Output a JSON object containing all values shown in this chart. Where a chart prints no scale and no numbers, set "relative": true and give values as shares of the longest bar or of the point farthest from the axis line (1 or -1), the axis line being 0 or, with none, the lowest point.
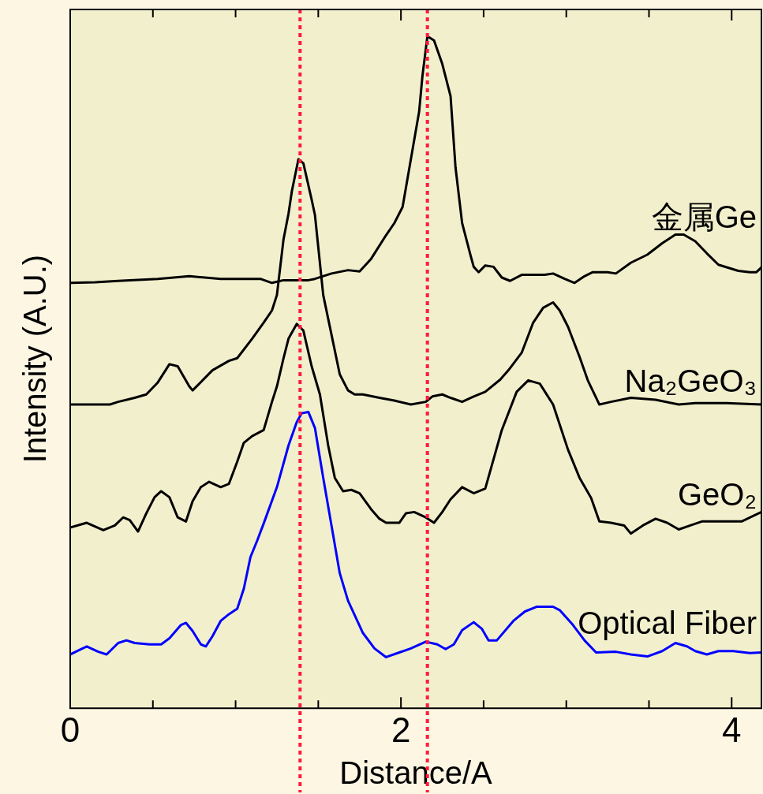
{
  "chart_data": {
    "type": "line",
    "xlabel": "Distance/A",
    "ylabel": "Intensity (A.U.)",
    "relative": true,
    "xlim": [
      0,
      4.18
    ],
    "xticks": [
      0,
      {
        "value": 0.5,
        "label": null
      },
      {
        "value": 1,
        "label": null
      },
      {
        "value": 1.5,
        "label": null
      },
      2,
      {
        "value": 2.5,
        "label": null
      },
      {
        "value": 3,
        "label": null
      },
      {
        "value": 3.5,
        "label": null
      },
      4
    ],
    "grid": false,
    "legend": false,
    "marker": "none",
    "line_style": "solid",
    "ref_lines": [
      {
        "axis": "x",
        "value": 1.39,
        "color": "#ff1a3c",
        "line_style": "dotted"
      },
      {
        "axis": "x",
        "value": 2.16,
        "color": "#ff1a3c",
        "line_style": "dotted"
      }
    ],
    "series": [
      {
        "name": "金属Ge",
        "color": "#000000",
        "x": [
          0,
          0.15,
          0.29,
          0.53,
          0.72,
          0.91,
          1.15,
          1.22,
          1.29,
          1.44,
          1.48,
          1.58,
          1.68,
          1.75,
          1.82,
          1.91,
          1.96,
          2.01,
          2.06,
          2.11,
          2.13,
          2.16,
          2.2,
          2.25,
          2.3,
          2.33,
          2.37,
          2.42,
          2.44,
          2.47,
          2.51,
          2.56,
          2.61,
          2.66,
          2.73,
          2.87,
          2.92,
          2.99,
          3.05,
          3.11,
          3.16,
          3.25,
          3.3,
          3.39,
          3.49,
          3.58,
          3.66,
          3.71,
          3.78,
          3.85,
          3.92,
          4.04,
          4.11,
          4.15,
          4.18
        ],
        "values": [
          0.633,
          0.634,
          0.636,
          0.639,
          0.643,
          0.639,
          0.639,
          0.633,
          0.637,
          0.637,
          0.639,
          0.647,
          0.652,
          0.65,
          0.669,
          0.704,
          0.722,
          0.746,
          0.817,
          0.888,
          0.941,
          1,
          0.994,
          0.959,
          0.911,
          0.805,
          0.722,
          0.675,
          0.657,
          0.649,
          0.659,
          0.657,
          0.641,
          0.636,
          0.645,
          0.645,
          0.647,
          0.639,
          0.633,
          0.643,
          0.649,
          0.649,
          0.647,
          0.663,
          0.675,
          0.692,
          0.705,
          0.705,
          0.695,
          0.677,
          0.66,
          0.651,
          0.649,
          0.649,
          0.656
        ]
      },
      {
        "name": "Na₂GeO₃",
        "color": "#000000",
        "x": [
          0,
          0.15,
          0.24,
          0.29,
          0.39,
          0.46,
          0.53,
          0.6,
          0.65,
          0.72,
          0.74,
          0.86,
          0.96,
          1.01,
          1.1,
          1.17,
          1.22,
          1.25,
          1.29,
          1.32,
          1.34,
          1.38,
          1.41,
          1.46,
          1.48,
          1.53,
          1.58,
          1.63,
          1.68,
          1.72,
          1.77,
          1.87,
          1.96,
          2.06,
          2.15,
          2.19,
          2.25,
          2.3,
          2.37,
          2.44,
          2.51,
          2.6,
          2.65,
          2.73,
          2.8,
          2.86,
          2.92,
          2.96,
          3.01,
          3.08,
          3.13,
          3.2,
          3.27,
          3.39,
          3.54,
          3.68,
          3.78,
          3.97,
          4.18
        ],
        "values": [
          0.452,
          0.452,
          0.452,
          0.456,
          0.462,
          0.467,
          0.485,
          0.512,
          0.509,
          0.479,
          0.473,
          0.503,
          0.517,
          0.521,
          0.55,
          0.574,
          0.592,
          0.615,
          0.698,
          0.736,
          0.769,
          0.817,
          0.811,
          0.757,
          0.734,
          0.615,
          0.556,
          0.497,
          0.473,
          0.467,
          0.467,
          0.462,
          0.458,
          0.452,
          0.456,
          0.464,
          0.467,
          0.462,
          0.456,
          0.464,
          0.471,
          0.489,
          0.503,
          0.529,
          0.574,
          0.596,
          0.604,
          0.592,
          0.568,
          0.523,
          0.488,
          0.452,
          0.456,
          0.462,
          0.459,
          0.452,
          0.454,
          0.454,
          0.452
        ]
      },
      {
        "name": "GeO₂",
        "color": "#000000",
        "x": [
          0,
          0.1,
          0.2,
          0.27,
          0.32,
          0.36,
          0.41,
          0.46,
          0.51,
          0.55,
          0.6,
          0.65,
          0.7,
          0.74,
          0.79,
          0.84,
          0.91,
          0.96,
          1.01,
          1.05,
          1.1,
          1.17,
          1.22,
          1.25,
          1.29,
          1.32,
          1.37,
          1.41,
          1.46,
          1.51,
          1.56,
          1.6,
          1.65,
          1.7,
          1.75,
          1.82,
          1.87,
          1.91,
          1.99,
          2.03,
          2.08,
          2.15,
          2.2,
          2.25,
          2.3,
          2.37,
          2.44,
          2.51,
          2.61,
          2.7,
          2.77,
          2.84,
          2.92,
          3.01,
          3.08,
          3.15,
          3.2,
          3.27,
          3.35,
          3.39,
          3.47,
          3.54,
          3.61,
          3.68,
          3.75,
          3.82,
          3.97,
          4.06,
          4.18
        ],
        "values": [
          0.269,
          0.276,
          0.265,
          0.272,
          0.284,
          0.28,
          0.263,
          0.29,
          0.314,
          0.323,
          0.314,
          0.284,
          0.278,
          0.308,
          0.329,
          0.337,
          0.329,
          0.334,
          0.367,
          0.395,
          0.405,
          0.414,
          0.456,
          0.479,
          0.521,
          0.55,
          0.572,
          0.562,
          0.509,
          0.467,
          0.391,
          0.343,
          0.323,
          0.325,
          0.32,
          0.296,
          0.282,
          0.276,
          0.276,
          0.29,
          0.292,
          0.284,
          0.276,
          0.292,
          0.311,
          0.329,
          0.32,
          0.327,
          0.414,
          0.471,
          0.488,
          0.483,
          0.452,
          0.385,
          0.343,
          0.313,
          0.278,
          0.276,
          0.272,
          0.26,
          0.273,
          0.282,
          0.276,
          0.266,
          0.272,
          0.278,
          0.278,
          0.278,
          0.292
        ]
      },
      {
        "name": "Optical Fiber",
        "color": "#0000ff",
        "x": [
          0,
          0.05,
          0.1,
          0.17,
          0.22,
          0.29,
          0.34,
          0.39,
          0.48,
          0.55,
          0.6,
          0.67,
          0.7,
          0.74,
          0.79,
          0.82,
          0.86,
          0.91,
          0.96,
          1.01,
          1.05,
          1.09,
          1.13,
          1.17,
          1.25,
          1.32,
          1.37,
          1.4,
          1.44,
          1.48,
          1.53,
          1.58,
          1.63,
          1.68,
          1.77,
          1.84,
          1.91,
          1.99,
          2.06,
          2.15,
          2.22,
          2.27,
          2.32,
          2.37,
          2.44,
          2.49,
          2.53,
          2.58,
          2.68,
          2.75,
          2.82,
          2.92,
          2.96,
          3.04,
          3.11,
          3.18,
          3.3,
          3.39,
          3.49,
          3.58,
          3.66,
          3.73,
          3.78,
          3.85,
          3.92,
          4.01,
          4.11,
          4.18
        ],
        "values": [
          0.08,
          0.086,
          0.092,
          0.084,
          0.08,
          0.097,
          0.101,
          0.097,
          0.095,
          0.095,
          0.104,
          0.124,
          0.127,
          0.115,
          0.095,
          0.092,
          0.107,
          0.13,
          0.14,
          0.148,
          0.178,
          0.225,
          0.249,
          0.275,
          0.329,
          0.391,
          0.426,
          0.439,
          0.441,
          0.417,
          0.343,
          0.272,
          0.201,
          0.16,
          0.112,
          0.089,
          0.076,
          0.083,
          0.089,
          0.099,
          0.095,
          0.088,
          0.095,
          0.116,
          0.128,
          0.118,
          0.101,
          0.101,
          0.13,
          0.144,
          0.151,
          0.151,
          0.146,
          0.124,
          0.101,
          0.083,
          0.084,
          0.08,
          0.077,
          0.085,
          0.097,
          0.092,
          0.085,
          0.08,
          0.085,
          0.085,
          0.082,
          0.083
        ]
      }
    ]
  }
}
